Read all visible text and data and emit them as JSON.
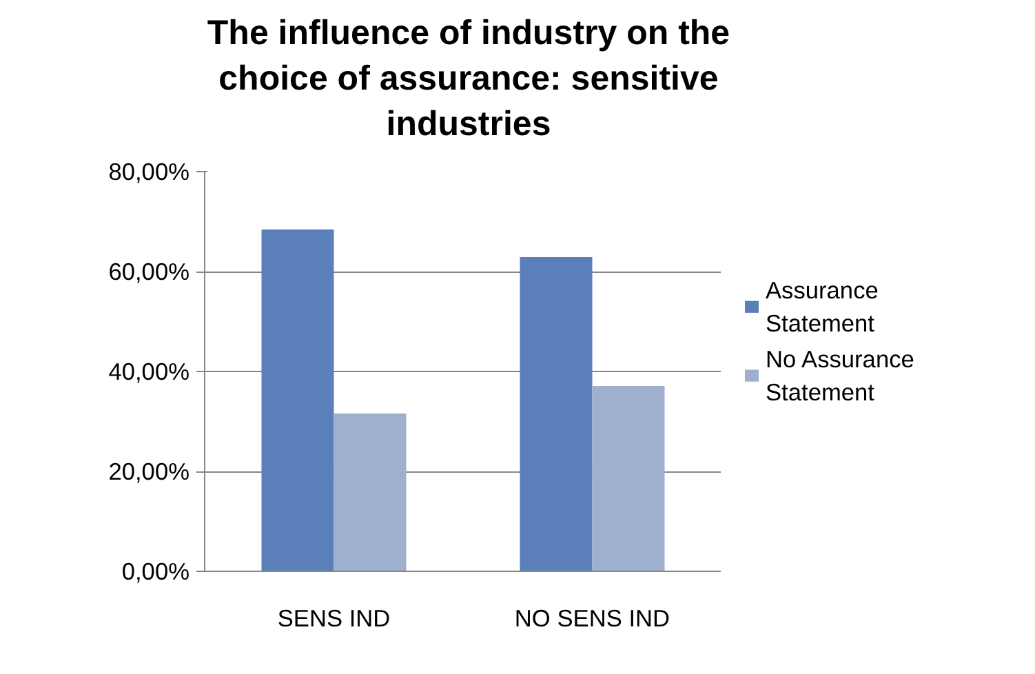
{
  "chart_data": {
    "type": "bar",
    "title": "The influence of industry on the choice of assurance: sensitive industries",
    "categories": [
      "SENS IND",
      "NO SENS IND"
    ],
    "series": [
      {
        "name": "Assurance Statement",
        "color": "#5b7fb8",
        "values": [
          68.4,
          62.9
        ]
      },
      {
        "name": "No Assurance Statement",
        "color": "#9fb0cf",
        "values": [
          31.6,
          37.1
        ]
      }
    ],
    "ylim": [
      0,
      80
    ],
    "yticks": [
      {
        "value": 0,
        "label": "0,00%"
      },
      {
        "value": 20,
        "label": "20,00%"
      },
      {
        "value": 40,
        "label": "40,00%"
      },
      {
        "value": 60,
        "label": "60,00%"
      },
      {
        "value": 80,
        "label": "80,00%"
      }
    ],
    "grid": "y",
    "legend": "right"
  }
}
